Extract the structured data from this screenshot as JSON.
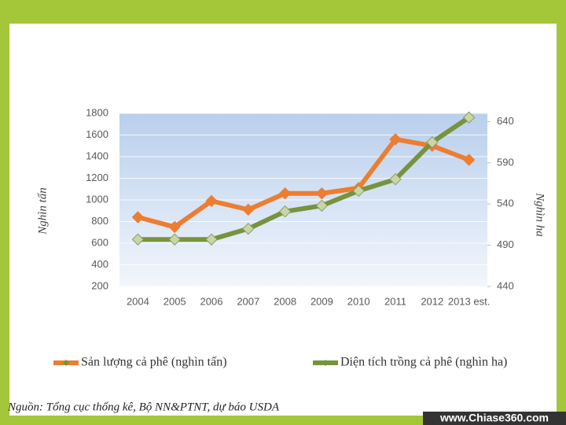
{
  "chart_data": {
    "type": "line",
    "y_label": "Nghìn tấn",
    "y2_label": "Nghìn ha",
    "categories": [
      "2004",
      "2005",
      "2006",
      "2007",
      "2008",
      "2009",
      "2010",
      "2011",
      "2012",
      "2013 est."
    ],
    "series": [
      {
        "name": "Sản lượng cả phê (nghìn tấn)",
        "color": "#ed7d31",
        "values": [
          840,
          750,
          990,
          910,
          1060,
          1060,
          1110,
          1560,
          1500,
          1370
        ]
      },
      {
        "name": "Diện tích trồng cả phê (nghìn ha)",
        "color": "#77933c",
        "axis": "y2",
        "values": [
          497,
          497,
          497,
          510,
          531,
          538,
          556,
          570,
          615,
          645
        ]
      }
    ],
    "ylim": [
      200,
      1800
    ],
    "yticks": [
      200,
      400,
      600,
      800,
      1000,
      1200,
      1400,
      1600,
      1800
    ],
    "y2lim": [
      440,
      650
    ],
    "y2ticks": [
      440,
      490,
      540,
      590,
      640
    ],
    "grid": true,
    "legend": "bottom"
  },
  "source": "Nguồn: Tổng cục thống kê, Bộ NN&PTNT, dự báo USDA",
  "watermark": "www.Chiase360.com"
}
